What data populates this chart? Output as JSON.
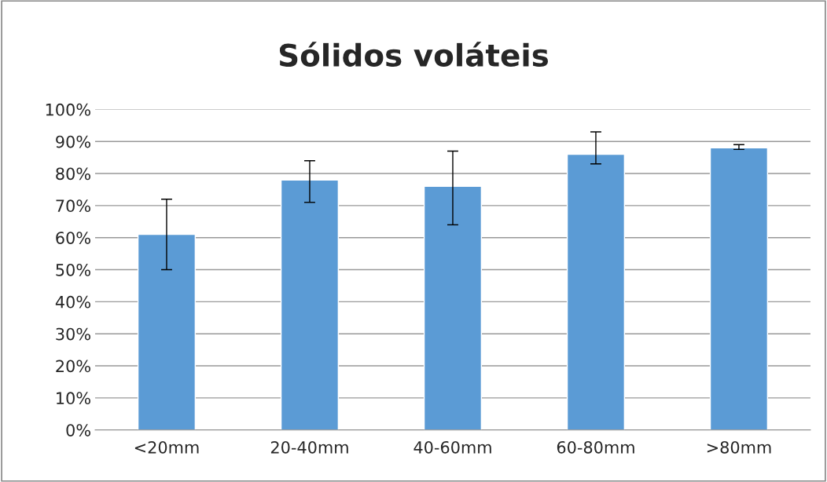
{
  "chart_data": {
    "type": "bar",
    "title": "Sólidos voláteis",
    "categories": [
      "<20mm",
      "20-40mm",
      "40-60mm",
      "60-80mm",
      ">80mm"
    ],
    "values": [
      61,
      78,
      76,
      86,
      88
    ],
    "errors": [
      [
        50,
        72
      ],
      [
        71,
        84
      ],
      [
        64,
        87
      ],
      [
        83,
        93
      ],
      [
        87.5,
        89
      ]
    ],
    "color": "#5b9bd5",
    "ylim": [
      0,
      100
    ],
    "yticks": [
      {
        "value": 0,
        "label": "0%"
      },
      {
        "value": 10,
        "label": "10%"
      },
      {
        "value": 20,
        "label": "20%"
      },
      {
        "value": 30,
        "label": "30%"
      },
      {
        "value": 40,
        "label": "40%"
      },
      {
        "value": 50,
        "label": "50%"
      },
      {
        "value": 60,
        "label": "60%"
      },
      {
        "value": 70,
        "label": "70%"
      },
      {
        "value": 80,
        "label": "80%"
      },
      {
        "value": 90,
        "label": "90%"
      },
      {
        "value": 100,
        "label": "100%"
      }
    ],
    "grid": "y"
  }
}
